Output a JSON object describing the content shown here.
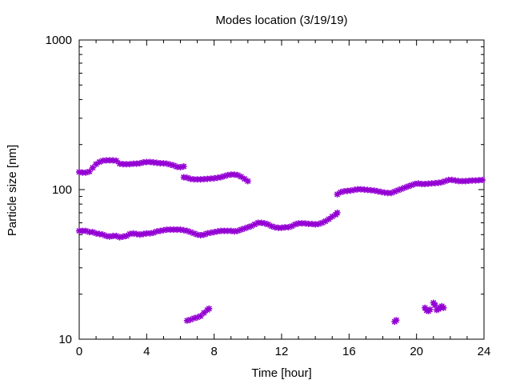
{
  "chart_data": {
    "type": "scatter",
    "title": "Modes location (3/19/19)",
    "xlabel": "Time [hour]",
    "ylabel": "Particle size [nm]",
    "xlim": [
      0,
      24
    ],
    "ylim": [
      10,
      1000
    ],
    "yscale": "log",
    "grid": false,
    "x_ticks": [
      0,
      4,
      8,
      12,
      16,
      20,
      24
    ],
    "x_tick_labels": [
      "0",
      "4",
      "8",
      "12",
      "16",
      "20",
      "24"
    ],
    "y_ticks": [
      10,
      100,
      1000
    ],
    "y_tick_labels": [
      "10",
      "100",
      "1000"
    ],
    "marker_color": "#9400d3",
    "series": [
      {
        "points": [
          [
            0.0,
            53
          ],
          [
            0.2,
            53
          ],
          [
            0.4,
            53
          ],
          [
            0.6,
            52
          ],
          [
            0.8,
            52
          ],
          [
            1.0,
            51
          ],
          [
            1.2,
            50.5
          ],
          [
            1.4,
            50
          ],
          [
            1.6,
            49
          ],
          [
            1.8,
            48.5
          ],
          [
            2.0,
            49
          ],
          [
            2.2,
            49
          ],
          [
            2.4,
            48
          ],
          [
            2.6,
            48.5
          ],
          [
            2.8,
            49
          ],
          [
            3.0,
            50.5
          ],
          [
            3.2,
            51
          ],
          [
            3.4,
            50.5
          ],
          [
            3.6,
            50
          ],
          [
            3.8,
            50.5
          ],
          [
            4.0,
            51
          ],
          [
            4.2,
            51
          ],
          [
            4.4,
            51.5
          ],
          [
            4.6,
            52.5
          ],
          [
            4.8,
            53
          ],
          [
            5.0,
            53.5
          ],
          [
            5.2,
            54
          ],
          [
            5.4,
            54
          ],
          [
            5.6,
            54
          ],
          [
            5.8,
            54
          ],
          [
            6.0,
            54
          ],
          [
            6.2,
            53.5
          ],
          [
            6.4,
            53
          ],
          [
            6.6,
            52
          ],
          [
            6.8,
            51
          ],
          [
            7.0,
            50
          ],
          [
            7.2,
            49.5
          ],
          [
            7.4,
            50
          ],
          [
            7.6,
            51
          ],
          [
            7.8,
            51.5
          ],
          [
            8.0,
            52
          ],
          [
            8.2,
            52.5
          ],
          [
            8.4,
            53
          ],
          [
            8.6,
            53
          ],
          [
            8.8,
            53
          ],
          [
            9.0,
            53
          ],
          [
            9.2,
            52.5
          ],
          [
            9.4,
            53
          ],
          [
            9.6,
            54
          ],
          [
            9.8,
            55
          ],
          [
            10.0,
            56
          ],
          [
            10.2,
            57
          ],
          [
            10.4,
            58.5
          ],
          [
            10.6,
            60
          ],
          [
            10.8,
            60
          ],
          [
            11.0,
            59.5
          ],
          [
            11.2,
            58.5
          ],
          [
            11.4,
            57
          ],
          [
            11.6,
            56
          ],
          [
            11.8,
            55.5
          ],
          [
            12.0,
            55.5
          ],
          [
            12.2,
            56
          ],
          [
            12.4,
            56
          ],
          [
            12.6,
            57
          ],
          [
            12.8,
            58.5
          ],
          [
            13.0,
            59.5
          ],
          [
            13.2,
            59.5
          ],
          [
            13.4,
            59.5
          ],
          [
            13.6,
            59
          ],
          [
            13.8,
            59
          ],
          [
            14.0,
            58.5
          ],
          [
            14.2,
            59
          ],
          [
            14.4,
            60
          ],
          [
            14.6,
            61.5
          ],
          [
            14.8,
            63.5
          ],
          [
            15.0,
            66
          ],
          [
            15.2,
            68
          ],
          [
            15.3,
            70
          ]
        ]
      },
      {
        "points": [
          [
            0.0,
            131
          ],
          [
            0.2,
            130
          ],
          [
            0.4,
            130
          ],
          [
            0.6,
            132
          ],
          [
            0.8,
            140
          ],
          [
            1.0,
            148
          ],
          [
            1.2,
            153
          ],
          [
            1.4,
            156
          ],
          [
            1.6,
            157
          ],
          [
            1.8,
            157
          ],
          [
            2.0,
            157
          ],
          [
            2.2,
            156
          ],
          [
            2.4,
            149
          ],
          [
            2.6,
            148
          ],
          [
            2.8,
            148
          ],
          [
            3.0,
            148
          ],
          [
            3.2,
            149
          ],
          [
            3.4,
            149
          ],
          [
            3.6,
            150
          ],
          [
            3.8,
            152
          ],
          [
            4.0,
            153
          ],
          [
            4.2,
            153
          ],
          [
            4.4,
            152
          ],
          [
            4.6,
            151
          ],
          [
            4.8,
            150
          ],
          [
            5.0,
            150
          ],
          [
            5.2,
            149
          ],
          [
            5.4,
            147
          ],
          [
            5.6,
            145
          ],
          [
            5.8,
            142
          ],
          [
            6.0,
            141
          ],
          [
            6.2,
            143
          ]
        ]
      },
      {
        "points": [
          [
            6.2,
            121
          ],
          [
            6.4,
            120
          ],
          [
            6.6,
            118
          ],
          [
            6.8,
            117
          ],
          [
            7.0,
            117
          ],
          [
            7.2,
            117
          ],
          [
            7.4,
            117.5
          ],
          [
            7.6,
            118
          ],
          [
            7.8,
            118.5
          ],
          [
            8.0,
            119
          ],
          [
            8.2,
            120
          ],
          [
            8.4,
            121
          ],
          [
            8.6,
            123
          ],
          [
            8.8,
            125
          ],
          [
            9.0,
            126
          ],
          [
            9.2,
            126
          ],
          [
            9.4,
            125
          ],
          [
            9.6,
            122
          ],
          [
            9.8,
            118
          ],
          [
            10.0,
            114
          ]
        ]
      },
      {
        "points": [
          [
            15.3,
            93
          ],
          [
            15.5,
            96
          ],
          [
            15.7,
            97.5
          ],
          [
            15.9,
            98
          ],
          [
            16.1,
            98.5
          ],
          [
            16.3,
            99.5
          ],
          [
            16.5,
            100.5
          ],
          [
            16.7,
            100.5
          ],
          [
            16.9,
            100
          ],
          [
            17.1,
            99.5
          ],
          [
            17.3,
            99
          ],
          [
            17.5,
            98.5
          ],
          [
            17.7,
            97.5
          ],
          [
            17.9,
            96.5
          ],
          [
            18.1,
            95.5
          ],
          [
            18.3,
            95
          ],
          [
            18.5,
            95
          ],
          [
            18.7,
            97
          ],
          [
            18.9,
            99
          ],
          [
            19.1,
            101
          ],
          [
            19.3,
            103
          ],
          [
            19.5,
            105
          ],
          [
            19.7,
            107
          ],
          [
            19.9,
            109
          ],
          [
            20.1,
            110
          ],
          [
            20.3,
            109
          ],
          [
            20.5,
            109
          ],
          [
            20.7,
            109.5
          ],
          [
            20.9,
            110
          ],
          [
            21.1,
            110.5
          ],
          [
            21.3,
            111
          ],
          [
            21.5,
            112
          ],
          [
            21.7,
            114
          ],
          [
            21.9,
            116
          ],
          [
            22.1,
            116
          ],
          [
            22.3,
            115
          ],
          [
            22.5,
            114
          ],
          [
            22.7,
            114
          ],
          [
            22.9,
            114
          ],
          [
            23.1,
            114.5
          ],
          [
            23.3,
            115
          ],
          [
            23.5,
            115
          ],
          [
            23.7,
            115.5
          ],
          [
            23.9,
            116
          ]
        ]
      },
      {
        "points": [
          [
            6.4,
            13.3
          ],
          [
            6.6,
            13.5
          ],
          [
            6.8,
            13.8
          ],
          [
            7.0,
            14.0
          ],
          [
            7.2,
            14.3
          ],
          [
            7.4,
            15.0
          ],
          [
            7.6,
            15.7
          ],
          [
            7.7,
            16.0
          ]
        ]
      },
      {
        "points": [
          [
            18.7,
            13.1
          ],
          [
            18.8,
            13.4
          ],
          [
            20.5,
            16.2
          ],
          [
            20.6,
            15.6
          ],
          [
            20.7,
            15.4
          ],
          [
            20.8,
            15.8
          ],
          [
            21.0,
            17.5
          ],
          [
            21.1,
            16.9
          ],
          [
            21.2,
            15.7
          ],
          [
            21.3,
            15.9
          ],
          [
            21.4,
            16.3
          ],
          [
            21.5,
            16.6
          ],
          [
            21.6,
            16.2
          ]
        ]
      }
    ]
  }
}
